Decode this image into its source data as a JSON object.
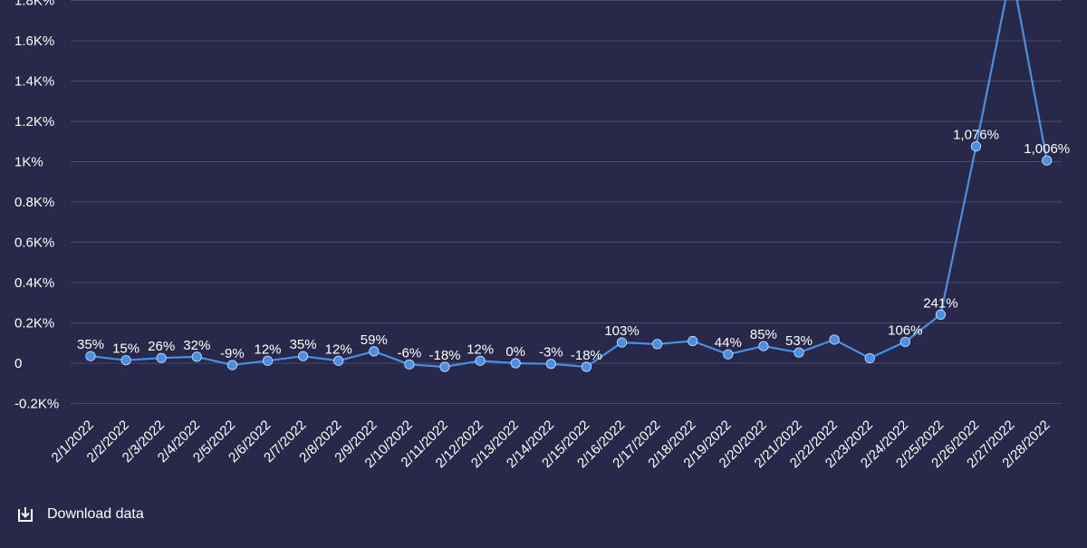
{
  "chart_data": {
    "type": "line",
    "categories": [
      "2/1/2022",
      "2/2/2022",
      "2/3/2022",
      "2/4/2022",
      "2/5/2022",
      "2/6/2022",
      "2/7/2022",
      "2/8/2022",
      "2/9/2022",
      "2/10/2022",
      "2/11/2022",
      "2/12/2022",
      "2/13/2022",
      "2/14/2022",
      "2/15/2022",
      "2/16/2022",
      "2/17/2022",
      "2/18/2022",
      "2/19/2022",
      "2/20/2022",
      "2/21/2022",
      "2/22/2022",
      "2/23/2022",
      "2/24/2022",
      "2/25/2022",
      "2/26/2022",
      "2/27/2022",
      "2/28/2022"
    ],
    "values": [
      35,
      15,
      26,
      32,
      -9,
      12,
      35,
      12,
      59,
      -6,
      -18,
      12,
      0,
      -3,
      -18,
      103,
      95,
      110,
      44,
      85,
      53,
      117,
      25,
      106,
      241,
      1076,
      1950,
      1006
    ],
    "data_labels": [
      "35%",
      "15%",
      "26%",
      "32%",
      "-9%",
      "12%",
      "35%",
      "12%",
      "59%",
      "-6%",
      "-18%",
      "12%",
      "0%",
      "-3%",
      "-18%",
      "103%",
      "",
      "",
      "44%",
      "85%",
      "53%",
      "",
      "",
      "106%",
      "241%",
      "1,076%",
      "",
      "1,006%"
    ],
    "y_ticks": [
      -200,
      0,
      200,
      400,
      600,
      800,
      1000,
      1200,
      1400,
      1600,
      1800
    ],
    "y_tick_labels": [
      "-0.2K%",
      "0",
      "0.2K%",
      "0.4K%",
      "0.6K%",
      "0.8K%",
      "1K%",
      "1.2K%",
      "1.4K%",
      "1.6K%",
      "1.8K%"
    ],
    "ylim": [
      -250,
      1830
    ],
    "grid": true,
    "colors": {
      "background": "#28284b",
      "line": "#4a90e2",
      "marker": "#4a90e2",
      "grid": "#4a4a70",
      "text": "#ffffff"
    }
  },
  "footer": {
    "download_label": "Download data",
    "download_icon": "download-icon"
  }
}
